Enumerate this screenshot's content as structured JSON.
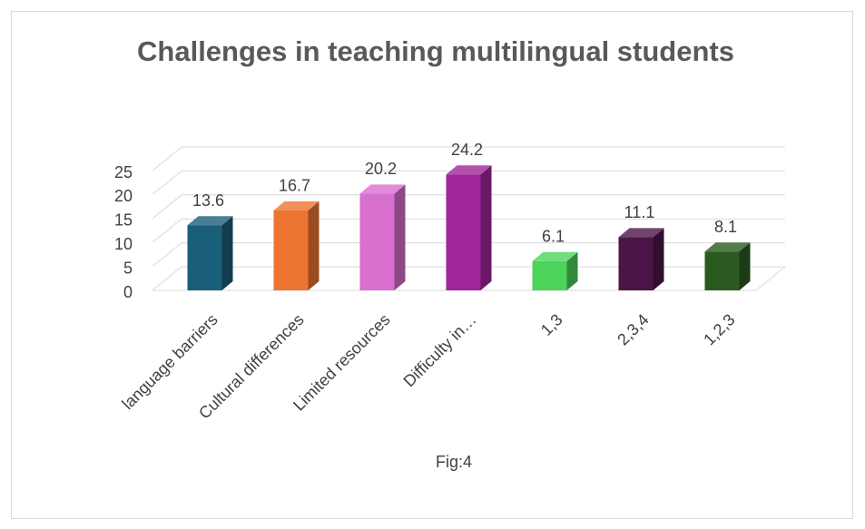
{
  "chart_data": {
    "type": "bar",
    "title": "Challenges in teaching multilingual students",
    "categories": [
      "language barriers",
      "Cultural differences",
      "Limited resources",
      "Difficulty in…",
      "1,3",
      "2,3,4",
      "1,2,3"
    ],
    "values": [
      13.6,
      16.7,
      20.2,
      24.2,
      6.1,
      11.1,
      8.1
    ],
    "colors": [
      "#1a5f7a",
      "#ed7431",
      "#d96fcf",
      "#a0259a",
      "#4cd35a",
      "#4b1547",
      "#2a5a1f"
    ],
    "ylim": [
      0,
      25
    ],
    "yticks": [
      0,
      5,
      10,
      15,
      20,
      25
    ],
    "grid": true,
    "caption": "Fig:4"
  }
}
